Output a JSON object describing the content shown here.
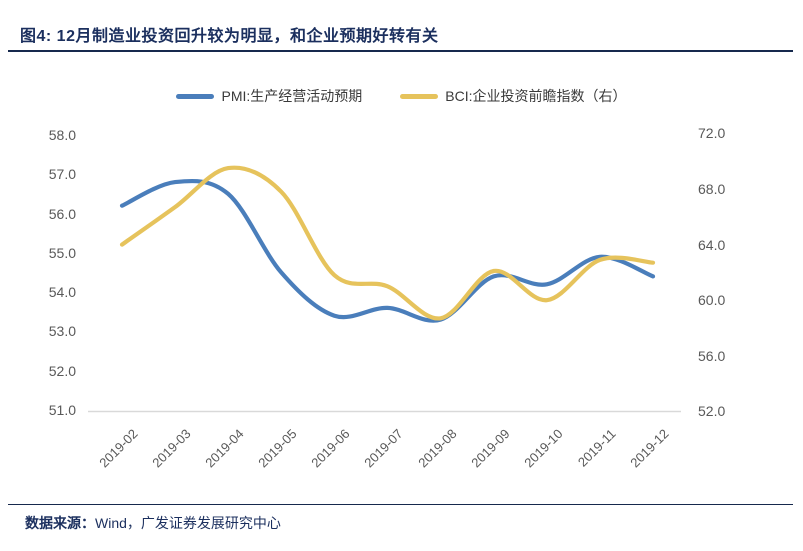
{
  "figure": {
    "title": "图4: 12月制造业投资回升较为明显，和企业预期好转有关",
    "footer_label": "数据来源：",
    "footer_source": "Wind，广发证券发展研究中心"
  },
  "colors": {
    "pmi_line": "#4a7ebb",
    "bci_line": "#e6c35c",
    "title_navy": "#1b2f5e",
    "axis_label_gray": "#595959",
    "axis_line_gray": "#d9d9d9"
  },
  "chart_data": {
    "type": "line",
    "smooth": true,
    "grid": false,
    "legend_position": "top",
    "categories": [
      "2019-02",
      "2019-03",
      "2019-04",
      "2019-05",
      "2019-06",
      "2019-07",
      "2019-08",
      "2019-09",
      "2019-10",
      "2019-11",
      "2019-12"
    ],
    "series": [
      {
        "name": "PMI:生产经营活动预期",
        "axis": "left",
        "color": "#4a7ebb",
        "values": [
          56.2,
          56.8,
          56.5,
          54.5,
          53.4,
          53.6,
          53.3,
          54.4,
          54.2,
          54.9,
          54.4
        ]
      },
      {
        "name": "BCI:企业投资前瞻指数（右）",
        "axis": "right",
        "color": "#e6c35c",
        "values": [
          64.0,
          66.7,
          69.5,
          67.8,
          61.8,
          61.0,
          58.7,
          62.1,
          60.0,
          62.9,
          62.7
        ]
      }
    ],
    "left_axis": {
      "min": 51,
      "max": 58,
      "step": 1,
      "ticks": [
        "58.0",
        "57.0",
        "56.0",
        "55.0",
        "54.0",
        "53.0",
        "52.0",
        "51.0"
      ]
    },
    "right_axis": {
      "min": 52,
      "max": 72,
      "step": 4,
      "ticks": [
        "72.0",
        "68.0",
        "64.0",
        "60.0",
        "56.0",
        "52.0"
      ]
    }
  }
}
